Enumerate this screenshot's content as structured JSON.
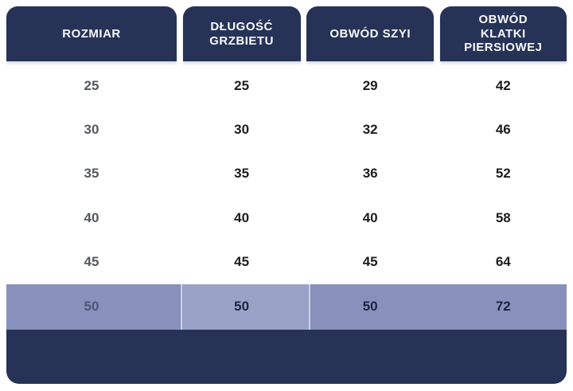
{
  "table": {
    "columns": [
      {
        "label": "ROZMIAR"
      },
      {
        "label": "DŁUGOŚĆ GRZBIETU"
      },
      {
        "label": "OBWÓD SZYI"
      },
      {
        "label": "OBWÓD KLATKI PIERSIOWEJ"
      }
    ],
    "rows": [
      {
        "cells": [
          "25",
          "25",
          "29",
          "42"
        ]
      },
      {
        "cells": [
          "30",
          "30",
          "32",
          "46"
        ]
      },
      {
        "cells": [
          "35",
          "35",
          "36",
          "52"
        ]
      },
      {
        "cells": [
          "40",
          "40",
          "40",
          "58"
        ]
      },
      {
        "cells": [
          "45",
          "45",
          "45",
          "64"
        ]
      }
    ],
    "highlighted_row": {
      "cells": [
        "50",
        "50",
        "50",
        "72"
      ]
    }
  },
  "colors": {
    "header_navy": "#263357",
    "footer_navy": "#263357",
    "highlight_band": "#8791BB",
    "highlight_mid_cell": "#99A2C7",
    "header_text": "#F7F8FA",
    "data_text": "#1C1C1E",
    "size_column_text": "#55595F"
  },
  "chart_data": {
    "type": "table",
    "title": "",
    "columns": [
      "ROZMIAR",
      "DŁUGOŚĆ GRZBIETU",
      "OBWÓD SZYI",
      "OBWÓD KLATKI PIERSIOWEJ"
    ],
    "rows": [
      [
        25,
        25,
        29,
        42
      ],
      [
        30,
        30,
        32,
        46
      ],
      [
        35,
        35,
        36,
        52
      ],
      [
        40,
        40,
        40,
        58
      ],
      [
        45,
        45,
        45,
        64
      ],
      [
        50,
        50,
        50,
        72
      ]
    ],
    "highlighted_row_index": 5,
    "layout_hints": {
      "header_style": "navy rounded tabs",
      "highlight": "row 50 shown on light periwinkle band",
      "grid": "no row separator lines, white gaps only"
    }
  }
}
